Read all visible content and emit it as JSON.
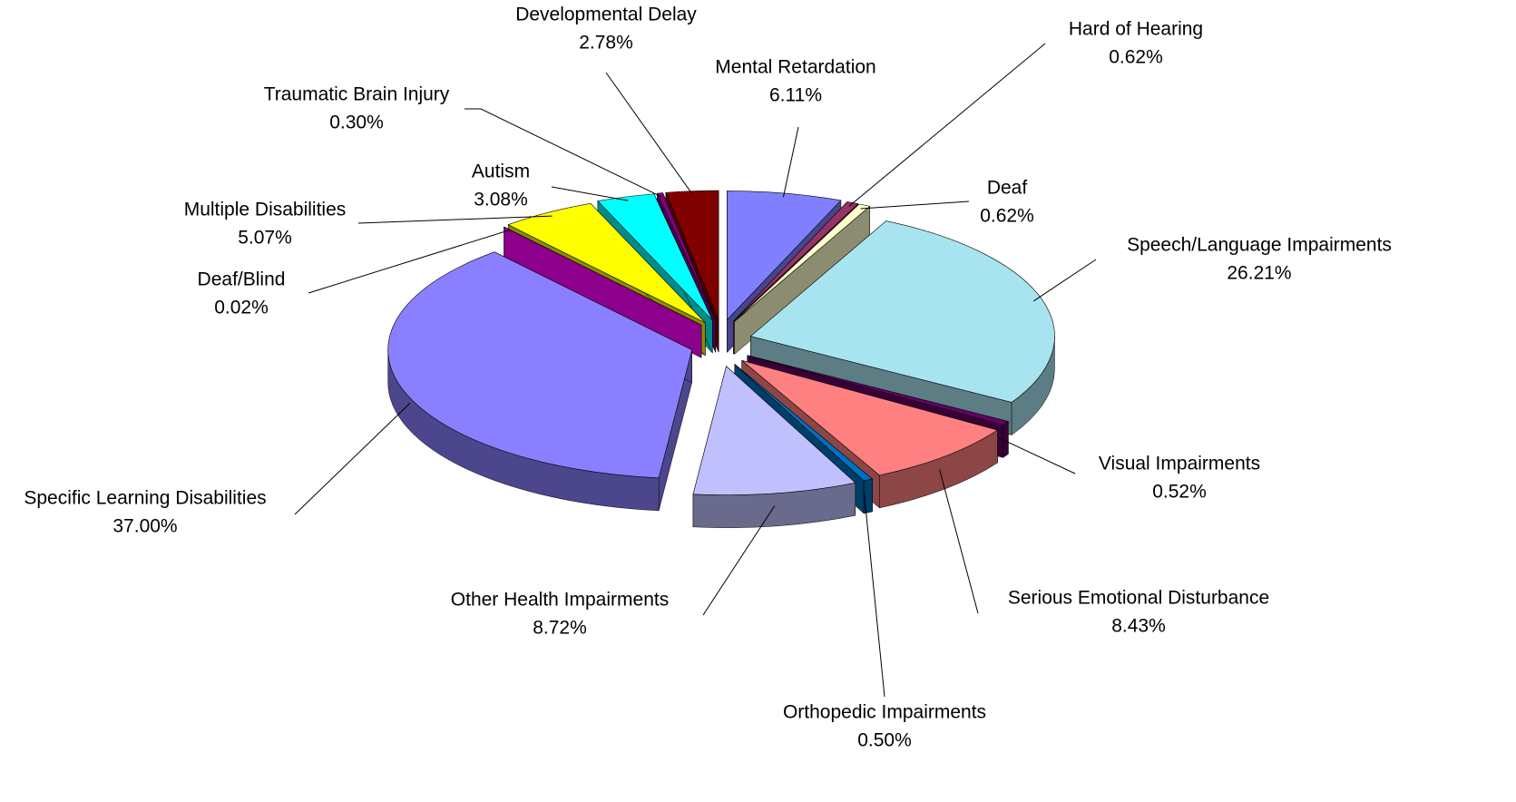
{
  "chart_data": {
    "type": "pie",
    "categories": [
      "Mental Retardation",
      "Hard of Hearing",
      "Deaf",
      "Speech/Language Impairments",
      "Visual Impairments",
      "Serious Emotional Disturbance",
      "Orthopedic Impairments",
      "Other Health Impairments",
      "Specific Learning Disabilities",
      "Deaf/Blind",
      "Multiple Disabilities",
      "Autism",
      "Traumatic Brain Injury",
      "Developmental Delay"
    ],
    "values": [
      6.11,
      0.62,
      0.62,
      26.21,
      0.52,
      8.43,
      0.5,
      8.72,
      37.0,
      0.02,
      5.07,
      3.08,
      0.3,
      2.78
    ],
    "value_labels": [
      "6.11%",
      "0.62%",
      "0.62%",
      "26.21%",
      "0.52%",
      "8.43%",
      "0.50%",
      "8.72%",
      "37.00%",
      "0.02%",
      "5.07%",
      "3.08%",
      "0.30%",
      "2.78%"
    ],
    "colors": [
      "#8080ff",
      "#993366",
      "#ffffcc",
      "#a8e4f0",
      "#660066",
      "#ff8080",
      "#0070c0",
      "#c0c0ff",
      "#8a80ff",
      "#ff00ff",
      "#ffff00",
      "#00ffff",
      "#800080",
      "#800000"
    ]
  }
}
